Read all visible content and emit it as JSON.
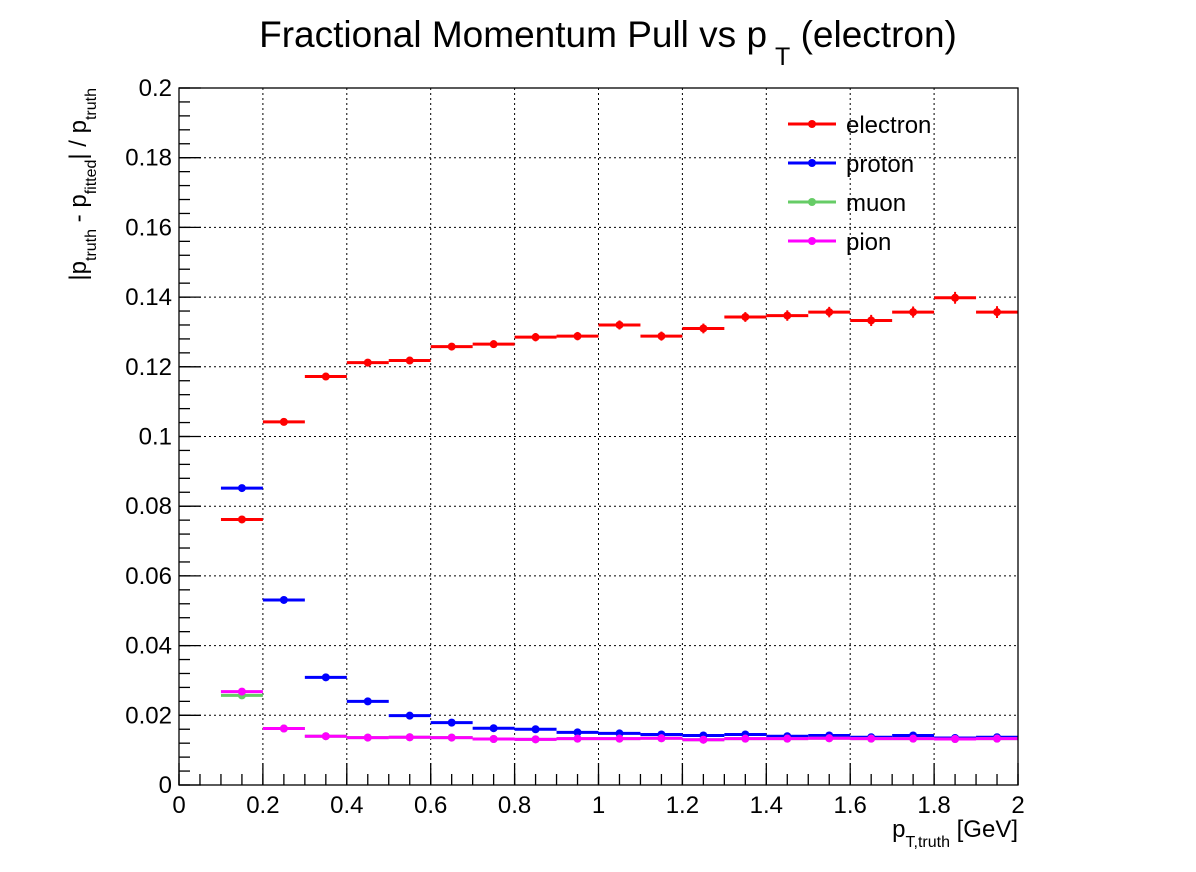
{
  "chart_data": {
    "type": "scatter",
    "title": {
      "main": "Fractional Momentum Pull vs p",
      "sub": "T",
      "tail": " (electron)"
    },
    "xlabel": {
      "main": "p",
      "sub": "T,truth",
      "tail": " [GeV]"
    },
    "ylabel": {
      "p1": "|p",
      "s1": "truth",
      "p2": " - p",
      "s2": "fitted",
      "p3": "| / p",
      "s3": "truth"
    },
    "xlim": [
      0,
      2
    ],
    "ylim": [
      0,
      0.2
    ],
    "x_ticks": [
      0,
      0.2,
      0.4,
      0.6,
      0.8,
      1,
      1.2,
      1.4,
      1.6,
      1.8,
      2
    ],
    "x_tick_labels": [
      "0",
      "0.2",
      "0.4",
      "0.6",
      "0.8",
      "1",
      "1.2",
      "1.4",
      "1.6",
      "1.8",
      "2"
    ],
    "y_ticks": [
      0,
      0.02,
      0.04,
      0.06,
      0.08,
      0.1,
      0.12,
      0.14,
      0.16,
      0.18,
      0.2
    ],
    "y_tick_labels": [
      "0",
      "0.02",
      "0.04",
      "0.06",
      "0.08",
      "0.1",
      "0.12",
      "0.14",
      "0.16",
      "0.18",
      "0.2"
    ],
    "grid": true,
    "legend_position": "top-right",
    "bin_width": 0.1,
    "x": [
      0.15,
      0.25,
      0.35,
      0.45,
      0.55,
      0.65,
      0.75,
      0.85,
      0.95,
      1.05,
      1.15,
      1.25,
      1.35,
      1.45,
      1.55,
      1.65,
      1.75,
      1.85,
      1.95
    ],
    "series": [
      {
        "name": "electron",
        "color": "#ff0000",
        "values": [
          0.0762,
          0.1042,
          0.1172,
          0.1212,
          0.1218,
          0.1258,
          0.1265,
          0.1285,
          0.1288,
          0.132,
          0.1288,
          0.131,
          0.1343,
          0.1347,
          0.1357,
          0.1333,
          0.1357,
          0.1398,
          0.1357
        ],
        "errors": [
          0.0005,
          0.0006,
          0.0007,
          0.0008,
          0.0009,
          0.001,
          0.0011,
          0.0012,
          0.0012,
          0.0013,
          0.0013,
          0.0014,
          0.0014,
          0.0015,
          0.0015,
          0.0016,
          0.0016,
          0.0017,
          0.0017
        ]
      },
      {
        "name": "proton",
        "color": "#0000ff",
        "values": [
          0.0852,
          0.0531,
          0.0309,
          0.024,
          0.0199,
          0.0179,
          0.0163,
          0.016,
          0.0151,
          0.0148,
          0.0145,
          0.0142,
          0.0145,
          0.014,
          0.0142,
          0.0137,
          0.0142,
          0.0135,
          0.0137
        ],
        "errors": [
          0.0003,
          0.0003,
          0.0003,
          0.0003,
          0.0003,
          0.0003,
          0.0003,
          0.0003,
          0.0003,
          0.0003,
          0.0003,
          0.0003,
          0.0003,
          0.0003,
          0.0003,
          0.0003,
          0.0003,
          0.0003,
          0.0003
        ]
      },
      {
        "name": "muon",
        "color": "#66cc66",
        "values": [
          0.0257,
          0.0162,
          0.014,
          0.0136,
          0.0137,
          0.0136,
          0.0132,
          0.0131,
          0.0133,
          0.0133,
          0.0134,
          0.013,
          0.0133,
          0.0133,
          0.0134,
          0.0133,
          0.0133,
          0.0132,
          0.0133
        ],
        "errors": [
          0.0002,
          0.0002,
          0.0002,
          0.0002,
          0.0002,
          0.0002,
          0.0002,
          0.0002,
          0.0002,
          0.0002,
          0.0002,
          0.0002,
          0.0002,
          0.0002,
          0.0002,
          0.0002,
          0.0002,
          0.0002,
          0.0002
        ]
      },
      {
        "name": "pion",
        "color": "#ff00ff",
        "values": [
          0.0268,
          0.0162,
          0.014,
          0.0136,
          0.0137,
          0.0136,
          0.0132,
          0.0131,
          0.0133,
          0.0133,
          0.0134,
          0.013,
          0.0133,
          0.0133,
          0.0134,
          0.0133,
          0.0133,
          0.0132,
          0.0133
        ],
        "errors": [
          0.0002,
          0.0002,
          0.0002,
          0.0002,
          0.0002,
          0.0002,
          0.0002,
          0.0002,
          0.0002,
          0.0002,
          0.0002,
          0.0002,
          0.0002,
          0.0002,
          0.0002,
          0.0002,
          0.0002,
          0.0002,
          0.0002
        ]
      }
    ]
  }
}
